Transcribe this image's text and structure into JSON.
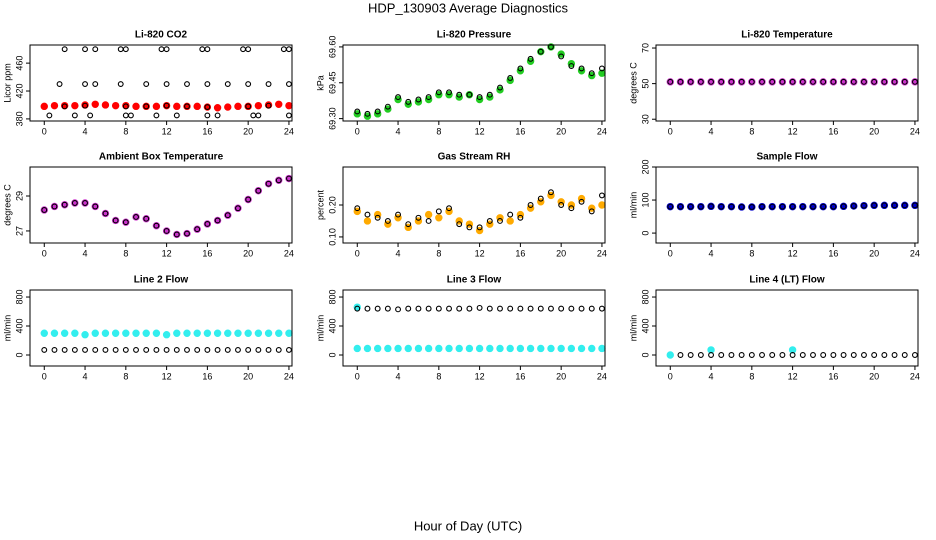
{
  "title": "HDP_130903  Average Diagnostics",
  "xlabel": "Hour of Day (UTC)",
  "chart_data": [
    {
      "type": "scatter",
      "title": "Li-820 CO2",
      "ylabel": "Licor ppm",
      "xlim": [
        -1.4,
        24.3
      ],
      "xticks": [
        0,
        4,
        8,
        12,
        16,
        20,
        24
      ],
      "ylim": [
        377,
        486
      ],
      "yticks": [
        380,
        420,
        460
      ],
      "x": [
        0,
        1,
        2,
        3,
        4,
        5,
        6,
        7,
        8,
        9,
        10,
        11,
        12,
        13,
        14,
        15,
        16,
        17,
        18,
        19,
        20,
        21,
        22,
        23,
        24
      ],
      "series": [
        {
          "color": "#ff0000",
          "marker": "filled",
          "values": [
            398,
            399,
            399,
            399,
            400,
            401,
            400,
            399,
            399,
            398,
            398,
            398,
            399,
            398,
            398,
            398,
            397,
            396,
            397,
            398,
            398,
            399,
            400,
            401,
            399
          ]
        },
        {
          "color": "#000000",
          "marker": "open",
          "x": [
            2,
            4,
            8,
            10,
            12,
            14,
            16,
            20,
            22
          ],
          "values": [
            398,
            399,
            398,
            398,
            399,
            398,
            397,
            398,
            399
          ]
        },
        {
          "color": "#000000",
          "marker": "open",
          "x": [
            2,
            4,
            5,
            7.5,
            8,
            11.5,
            12,
            15.5,
            16,
            19.5,
            20,
            23.5,
            24
          ],
          "values": [
            480,
            480,
            480,
            480,
            480,
            480,
            480,
            480,
            480,
            480,
            480,
            480,
            480
          ]
        },
        {
          "color": "#000000",
          "marker": "open",
          "x": [
            1.5,
            4,
            5,
            7.5,
            10,
            12,
            14,
            16,
            18,
            20,
            22,
            24
          ],
          "values": [
            430,
            430,
            430,
            430,
            430,
            430,
            430,
            430,
            430,
            430,
            430,
            430
          ]
        },
        {
          "color": "#000000",
          "marker": "open",
          "x": [
            0.5,
            3,
            4.5,
            8,
            8.5,
            11,
            13,
            16,
            17,
            20.5,
            21,
            24
          ],
          "values": [
            385,
            385,
            385,
            385,
            385,
            385,
            385,
            385,
            385,
            385,
            385,
            385
          ]
        }
      ]
    },
    {
      "type": "scatter",
      "title": "Li-820 Pressure",
      "ylabel": "kPa",
      "xlim": [
        -1.4,
        24.3
      ],
      "xticks": [
        0,
        4,
        8,
        12,
        16,
        20,
        24
      ],
      "ylim": [
        69.29,
        69.608
      ],
      "yticks": [
        {
          "value": 69.3,
          "label": "69.30"
        },
        {
          "value": 69.45,
          "label": "69.45"
        },
        {
          "value": 69.6,
          "label": "69.60"
        }
      ],
      "x": [
        0,
        1,
        2,
        3,
        4,
        5,
        6,
        7,
        8,
        9,
        10,
        11,
        12,
        13,
        14,
        15,
        16,
        17,
        18,
        19,
        20,
        21,
        22,
        23,
        24
      ],
      "series": [
        {
          "color": "#22cc22",
          "marker": "filled",
          "values": [
            69.32,
            69.31,
            69.32,
            69.34,
            69.38,
            69.36,
            69.37,
            69.38,
            69.4,
            69.4,
            69.39,
            69.4,
            69.38,
            69.39,
            69.42,
            69.46,
            69.5,
            69.54,
            69.58,
            69.6,
            69.57,
            69.53,
            69.5,
            69.48,
            69.49
          ]
        },
        {
          "color": "#000000",
          "marker": "open",
          "values": [
            69.33,
            69.32,
            69.33,
            69.35,
            69.39,
            69.37,
            69.38,
            69.39,
            69.41,
            69.41,
            69.4,
            69.4,
            69.39,
            69.4,
            69.43,
            69.47,
            69.51,
            69.55,
            69.58,
            69.6,
            69.56,
            69.52,
            69.51,
            69.49,
            69.51
          ]
        }
      ]
    },
    {
      "type": "scatter",
      "title": "Li-820 Temperature",
      "ylabel": "degrees C",
      "xlim": [
        -1.4,
        24.3
      ],
      "xticks": [
        0,
        4,
        8,
        12,
        16,
        20,
        24
      ],
      "ylim": [
        29,
        71.7
      ],
      "yticks": [
        30,
        50,
        70
      ],
      "x": [
        0,
        1,
        2,
        3,
        4,
        5,
        6,
        7,
        8,
        9,
        10,
        11,
        12,
        13,
        14,
        15,
        16,
        17,
        18,
        19,
        20,
        21,
        22,
        23,
        24
      ],
      "series": [
        {
          "color": "#cc33cc",
          "marker": "filled",
          "values": [
            51,
            51,
            51,
            51,
            51,
            51,
            51,
            51,
            51,
            51,
            51,
            51,
            51,
            51,
            51,
            51,
            51,
            51,
            51,
            51,
            51,
            51,
            51,
            51,
            51
          ]
        },
        {
          "color": "#000000",
          "marker": "open",
          "values": [
            51,
            51,
            51,
            51,
            51,
            51,
            51,
            51,
            51,
            51,
            51,
            51,
            51,
            51,
            51,
            51,
            51,
            51,
            51,
            51,
            51,
            51,
            51,
            51,
            51
          ]
        }
      ]
    },
    {
      "type": "scatter",
      "title": "Ambient Box Temperature",
      "ylabel": "degrees C",
      "xlim": [
        -1.4,
        24.3
      ],
      "xticks": [
        0,
        4,
        8,
        12,
        16,
        20,
        24
      ],
      "ylim": [
        26.31,
        30.66
      ],
      "yticks": [
        27,
        29
      ],
      "x": [
        0,
        1,
        2,
        3,
        4,
        5,
        6,
        7,
        8,
        9,
        10,
        11,
        12,
        13,
        14,
        15,
        16,
        17,
        18,
        19,
        20,
        21,
        22,
        23,
        24
      ],
      "series": [
        {
          "color": "#cc33cc",
          "marker": "filled",
          "values": [
            28.2,
            28.4,
            28.5,
            28.6,
            28.6,
            28.4,
            28.0,
            27.6,
            27.5,
            27.8,
            27.7,
            27.3,
            27.0,
            26.8,
            26.85,
            27.1,
            27.4,
            27.6,
            27.9,
            28.3,
            28.8,
            29.3,
            29.7,
            29.9,
            30.0
          ]
        },
        {
          "color": "#000000",
          "marker": "open",
          "values": [
            28.2,
            28.4,
            28.5,
            28.6,
            28.6,
            28.4,
            28.0,
            27.6,
            27.5,
            27.8,
            27.7,
            27.3,
            27.0,
            26.8,
            26.85,
            27.1,
            27.4,
            27.6,
            27.9,
            28.3,
            28.8,
            29.3,
            29.7,
            29.9,
            30.0
          ]
        }
      ]
    },
    {
      "type": "scatter",
      "title": "Gas Stream RH",
      "ylabel": "percent",
      "xlim": [
        -1.4,
        24.3
      ],
      "xticks": [
        0,
        4,
        8,
        12,
        16,
        20,
        24
      ],
      "ylim": [
        0.081,
        0.319
      ],
      "yticks": [
        {
          "value": 0.1,
          "label": "0.10"
        },
        {
          "value": 0.2,
          "label": "0.20"
        }
      ],
      "x": [
        0,
        1,
        2,
        3,
        4,
        5,
        6,
        7,
        8,
        9,
        10,
        11,
        12,
        13,
        14,
        15,
        16,
        17,
        18,
        19,
        20,
        21,
        22,
        23,
        24
      ],
      "series": [
        {
          "color": "#ffaa00",
          "marker": "filled",
          "values": [
            0.18,
            0.15,
            0.17,
            0.14,
            0.16,
            0.13,
            0.15,
            0.17,
            0.16,
            0.18,
            0.15,
            0.14,
            0.12,
            0.14,
            0.16,
            0.15,
            0.17,
            0.19,
            0.21,
            0.23,
            0.21,
            0.2,
            0.22,
            0.19,
            0.2
          ]
        },
        {
          "color": "#000000",
          "marker": "open",
          "values": [
            0.19,
            0.17,
            0.16,
            0.15,
            0.17,
            0.14,
            0.16,
            0.15,
            0.18,
            0.19,
            0.14,
            0.13,
            0.13,
            0.15,
            0.15,
            0.17,
            0.16,
            0.2,
            0.22,
            0.24,
            0.2,
            0.19,
            0.21,
            0.18,
            0.23
          ]
        }
      ]
    },
    {
      "type": "scatter",
      "title": "Sample Flow",
      "ylabel": "ml/min",
      "xlim": [
        -1.4,
        24.3
      ],
      "xticks": [
        0,
        4,
        8,
        12,
        16,
        20,
        24
      ],
      "ylim": [
        -30,
        200
      ],
      "yticks": [
        0,
        100,
        200
      ],
      "x": [
        0,
        1,
        2,
        3,
        4,
        5,
        6,
        7,
        8,
        9,
        10,
        11,
        12,
        13,
        14,
        15,
        16,
        17,
        18,
        19,
        20,
        21,
        22,
        23,
        24
      ],
      "series": [
        {
          "color": "#0000cc",
          "marker": "filled",
          "values": [
            80,
            80,
            80,
            80,
            81,
            80,
            80,
            79,
            79,
            80,
            80,
            80,
            80,
            80,
            80,
            80,
            80,
            81,
            82,
            83,
            84,
            84,
            84,
            84,
            84
          ]
        },
        {
          "color": "#000000",
          "marker": "open",
          "values": [
            80,
            80,
            80,
            80,
            81,
            80,
            80,
            79,
            79,
            80,
            80,
            80,
            80,
            80,
            80,
            80,
            80,
            81,
            82,
            83,
            84,
            84,
            84,
            84,
            84
          ]
        }
      ]
    },
    {
      "type": "scatter",
      "title": "Line 2 Flow",
      "ylabel": "ml/min",
      "xlim": [
        -1.4,
        24.3
      ],
      "xticks": [
        0,
        4,
        8,
        12,
        16,
        20,
        24
      ],
      "ylim": [
        -152,
        897
      ],
      "yticks": [
        0,
        400,
        800
      ],
      "x": [
        0,
        1,
        2,
        3,
        4,
        5,
        6,
        7,
        8,
        9,
        10,
        11,
        12,
        13,
        14,
        15,
        16,
        17,
        18,
        19,
        20,
        21,
        22,
        23,
        24
      ],
      "series": [
        {
          "color": "#33eeee",
          "marker": "filled",
          "values": [
            300,
            300,
            300,
            300,
            280,
            300,
            300,
            300,
            300,
            300,
            300,
            300,
            280,
            300,
            300,
            300,
            300,
            300,
            300,
            300,
            300,
            300,
            300,
            300,
            300
          ]
        },
        {
          "color": "#000000",
          "marker": "open",
          "values": [
            70,
            70,
            70,
            70,
            70,
            70,
            70,
            70,
            70,
            70,
            70,
            70,
            70,
            70,
            70,
            70,
            70,
            70,
            70,
            70,
            70,
            70,
            70,
            70,
            70
          ]
        }
      ]
    },
    {
      "type": "scatter",
      "title": "Line 3 Flow",
      "ylabel": "ml/min",
      "xlim": [
        -1.4,
        24.3
      ],
      "xticks": [
        0,
        4,
        8,
        12,
        16,
        20,
        24
      ],
      "ylim": [
        -152,
        897
      ],
      "yticks": [
        0,
        400,
        800
      ],
      "x": [
        0,
        1,
        2,
        3,
        4,
        5,
        6,
        7,
        8,
        9,
        10,
        11,
        12,
        13,
        14,
        15,
        16,
        17,
        18,
        19,
        20,
        21,
        22,
        23,
        24
      ],
      "series": [
        {
          "color": "#33eeee",
          "marker": "filled",
          "values": [
            90,
            90,
            90,
            90,
            90,
            90,
            90,
            90,
            90,
            90,
            90,
            90,
            90,
            90,
            90,
            90,
            90,
            90,
            90,
            90,
            90,
            90,
            90,
            90,
            90
          ]
        },
        {
          "color": "#33eeee",
          "marker": "filled",
          "x": [
            0
          ],
          "values": [
            660
          ]
        },
        {
          "color": "#000000",
          "marker": "open",
          "values": [
            640,
            640,
            640,
            640,
            630,
            640,
            640,
            640,
            640,
            640,
            640,
            640,
            650,
            640,
            640,
            640,
            640,
            640,
            640,
            640,
            640,
            640,
            640,
            640,
            640
          ]
        }
      ]
    },
    {
      "type": "scatter",
      "title": "Line 4 (LT) Flow",
      "ylabel": "ml/min",
      "xlim": [
        -1.4,
        24.3
      ],
      "xticks": [
        0,
        4,
        8,
        12,
        16,
        20,
        24
      ],
      "ylim": [
        -152,
        897
      ],
      "yticks": [
        0,
        400,
        800
      ],
      "x": [
        0,
        1,
        2,
        3,
        4,
        5,
        6,
        7,
        8,
        9,
        10,
        11,
        12,
        13,
        14,
        15,
        16,
        17,
        18,
        19,
        20,
        21,
        22,
        23,
        24
      ],
      "series": [
        {
          "color": "#33eeee",
          "marker": "filled",
          "x": [
            0,
            4,
            12
          ],
          "values": [
            0,
            70,
            70
          ]
        },
        {
          "color": "#000000",
          "marker": "open",
          "x": [
            1,
            2,
            3,
            4,
            5,
            6,
            7,
            8,
            9,
            10,
            11,
            12,
            13,
            14,
            15,
            16,
            17,
            18,
            19,
            20,
            21,
            22,
            23,
            24
          ],
          "values": [
            0,
            0,
            0,
            0,
            0,
            0,
            0,
            0,
            0,
            0,
            0,
            0,
            0,
            0,
            0,
            0,
            0,
            0,
            0,
            0,
            0,
            0,
            0,
            0
          ]
        }
      ]
    }
  ]
}
